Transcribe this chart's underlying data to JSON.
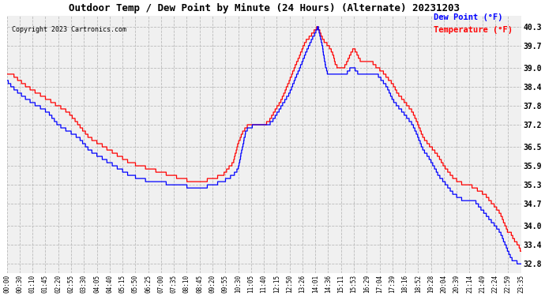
{
  "title": "Outdoor Temp / Dew Point by Minute (24 Hours) (Alternate) 20231203",
  "copyright": "Copyright 2023 Cartronics.com",
  "legend_dew": "Dew Point (°F)",
  "legend_temp": "Temperature (°F)",
  "temp_color": "red",
  "dew_color": "blue",
  "plot_bg": "#f0f0f0",
  "fig_bg": "white",
  "grid_color": "#bbbbbb",
  "yticks": [
    32.8,
    33.4,
    34.0,
    34.7,
    35.3,
    35.9,
    36.5,
    37.2,
    37.8,
    38.4,
    39.0,
    39.7,
    40.3
  ],
  "ytick_labels": [
    "32.8",
    "33.4",
    "34.0",
    "34.7",
    "35.3",
    "35.9",
    "36.5",
    "37.2",
    "37.8",
    "38.4",
    "39.0",
    "39.7",
    "40.3"
  ],
  "ylim": [
    32.5,
    40.65
  ],
  "xtick_labels": [
    "00:00",
    "00:30",
    "01:10",
    "01:45",
    "02:20",
    "02:55",
    "03:30",
    "04:05",
    "04:40",
    "05:15",
    "05:50",
    "06:25",
    "07:00",
    "07:35",
    "08:10",
    "08:45",
    "09:20",
    "09:55",
    "10:30",
    "11:05",
    "11:40",
    "12:15",
    "12:50",
    "13:26",
    "14:01",
    "14:36",
    "15:11",
    "15:53",
    "16:29",
    "17:04",
    "17:39",
    "18:16",
    "18:52",
    "19:28",
    "20:04",
    "20:39",
    "21:14",
    "21:49",
    "22:24",
    "22:59",
    "23:35"
  ],
  "figsize": [
    6.9,
    3.75
  ],
  "dpi": 100,
  "temp_keypoints": [
    [
      0.0,
      38.8
    ],
    [
      0.01,
      38.8
    ],
    [
      0.025,
      38.6
    ],
    [
      0.04,
      38.4
    ],
    [
      0.06,
      38.2
    ],
    [
      0.08,
      38.0
    ],
    [
      0.1,
      37.8
    ],
    [
      0.12,
      37.6
    ],
    [
      0.14,
      37.2
    ],
    [
      0.16,
      36.8
    ],
    [
      0.18,
      36.6
    ],
    [
      0.2,
      36.4
    ],
    [
      0.22,
      36.2
    ],
    [
      0.24,
      36.0
    ],
    [
      0.26,
      35.9
    ],
    [
      0.28,
      35.8
    ],
    [
      0.3,
      35.7
    ],
    [
      0.32,
      35.6
    ],
    [
      0.34,
      35.5
    ],
    [
      0.36,
      35.4
    ],
    [
      0.38,
      35.4
    ],
    [
      0.4,
      35.5
    ],
    [
      0.42,
      35.6
    ],
    [
      0.43,
      35.8
    ],
    [
      0.44,
      36.0
    ],
    [
      0.45,
      36.6
    ],
    [
      0.46,
      37.0
    ],
    [
      0.465,
      37.1
    ],
    [
      0.47,
      37.2
    ],
    [
      0.475,
      37.2
    ],
    [
      0.48,
      37.2
    ],
    [
      0.49,
      37.2
    ],
    [
      0.5,
      37.2
    ],
    [
      0.51,
      37.3
    ],
    [
      0.52,
      37.6
    ],
    [
      0.535,
      38.0
    ],
    [
      0.55,
      38.6
    ],
    [
      0.56,
      39.0
    ],
    [
      0.57,
      39.4
    ],
    [
      0.58,
      39.8
    ],
    [
      0.59,
      40.0
    ],
    [
      0.6,
      40.2
    ],
    [
      0.605,
      40.3
    ],
    [
      0.61,
      40.1
    ],
    [
      0.615,
      39.9
    ],
    [
      0.62,
      39.8
    ],
    [
      0.625,
      39.7
    ],
    [
      0.63,
      39.6
    ],
    [
      0.635,
      39.4
    ],
    [
      0.64,
      39.1
    ],
    [
      0.645,
      39.0
    ],
    [
      0.65,
      39.0
    ],
    [
      0.655,
      39.0
    ],
    [
      0.66,
      39.1
    ],
    [
      0.665,
      39.3
    ],
    [
      0.67,
      39.5
    ],
    [
      0.675,
      39.6
    ],
    [
      0.68,
      39.5
    ],
    [
      0.685,
      39.3
    ],
    [
      0.69,
      39.2
    ],
    [
      0.7,
      39.2
    ],
    [
      0.71,
      39.2
    ],
    [
      0.72,
      39.0
    ],
    [
      0.73,
      38.9
    ],
    [
      0.74,
      38.7
    ],
    [
      0.75,
      38.5
    ],
    [
      0.76,
      38.2
    ],
    [
      0.77,
      38.0
    ],
    [
      0.78,
      37.8
    ],
    [
      0.79,
      37.6
    ],
    [
      0.8,
      37.2
    ],
    [
      0.81,
      36.8
    ],
    [
      0.82,
      36.6
    ],
    [
      0.83,
      36.4
    ],
    [
      0.84,
      36.2
    ],
    [
      0.85,
      35.9
    ],
    [
      0.86,
      35.7
    ],
    [
      0.87,
      35.5
    ],
    [
      0.88,
      35.4
    ],
    [
      0.89,
      35.3
    ],
    [
      0.9,
      35.3
    ],
    [
      0.91,
      35.2
    ],
    [
      0.92,
      35.1
    ],
    [
      0.93,
      35.0
    ],
    [
      0.94,
      34.8
    ],
    [
      0.95,
      34.6
    ],
    [
      0.96,
      34.4
    ],
    [
      0.965,
      34.2
    ],
    [
      0.97,
      34.0
    ],
    [
      0.975,
      33.8
    ],
    [
      0.98,
      33.8
    ],
    [
      0.985,
      33.6
    ],
    [
      0.99,
      33.5
    ],
    [
      0.995,
      33.4
    ],
    [
      1.0,
      33.2
    ]
  ],
  "dew_keypoints": [
    [
      0.0,
      38.6
    ],
    [
      0.01,
      38.4
    ],
    [
      0.025,
      38.2
    ],
    [
      0.04,
      38.0
    ],
    [
      0.06,
      37.8
    ],
    [
      0.08,
      37.6
    ],
    [
      0.1,
      37.2
    ],
    [
      0.12,
      37.0
    ],
    [
      0.14,
      36.8
    ],
    [
      0.16,
      36.4
    ],
    [
      0.18,
      36.2
    ],
    [
      0.2,
      36.0
    ],
    [
      0.22,
      35.8
    ],
    [
      0.24,
      35.6
    ],
    [
      0.26,
      35.5
    ],
    [
      0.28,
      35.4
    ],
    [
      0.3,
      35.4
    ],
    [
      0.32,
      35.3
    ],
    [
      0.34,
      35.3
    ],
    [
      0.36,
      35.2
    ],
    [
      0.38,
      35.2
    ],
    [
      0.4,
      35.3
    ],
    [
      0.42,
      35.4
    ],
    [
      0.43,
      35.5
    ],
    [
      0.44,
      35.6
    ],
    [
      0.45,
      35.8
    ],
    [
      0.46,
      36.6
    ],
    [
      0.465,
      37.0
    ],
    [
      0.47,
      37.1
    ],
    [
      0.475,
      37.1
    ],
    [
      0.48,
      37.2
    ],
    [
      0.49,
      37.2
    ],
    [
      0.5,
      37.2
    ],
    [
      0.51,
      37.2
    ],
    [
      0.52,
      37.4
    ],
    [
      0.535,
      37.8
    ],
    [
      0.55,
      38.2
    ],
    [
      0.56,
      38.6
    ],
    [
      0.57,
      39.0
    ],
    [
      0.58,
      39.4
    ],
    [
      0.59,
      39.8
    ],
    [
      0.6,
      40.1
    ],
    [
      0.605,
      40.3
    ],
    [
      0.61,
      40.0
    ],
    [
      0.615,
      39.6
    ],
    [
      0.618,
      39.2
    ],
    [
      0.622,
      38.9
    ],
    [
      0.625,
      38.8
    ],
    [
      0.63,
      38.8
    ],
    [
      0.635,
      38.8
    ],
    [
      0.64,
      38.8
    ],
    [
      0.645,
      38.8
    ],
    [
      0.65,
      38.8
    ],
    [
      0.655,
      38.8
    ],
    [
      0.66,
      38.8
    ],
    [
      0.665,
      38.9
    ],
    [
      0.67,
      39.0
    ],
    [
      0.675,
      39.0
    ],
    [
      0.68,
      38.9
    ],
    [
      0.685,
      38.8
    ],
    [
      0.69,
      38.8
    ],
    [
      0.7,
      38.8
    ],
    [
      0.71,
      38.8
    ],
    [
      0.72,
      38.8
    ],
    [
      0.73,
      38.6
    ],
    [
      0.74,
      38.4
    ],
    [
      0.75,
      38.0
    ],
    [
      0.76,
      37.8
    ],
    [
      0.77,
      37.6
    ],
    [
      0.78,
      37.4
    ],
    [
      0.79,
      37.2
    ],
    [
      0.8,
      36.8
    ],
    [
      0.81,
      36.4
    ],
    [
      0.82,
      36.2
    ],
    [
      0.83,
      35.9
    ],
    [
      0.84,
      35.6
    ],
    [
      0.85,
      35.4
    ],
    [
      0.86,
      35.2
    ],
    [
      0.87,
      35.0
    ],
    [
      0.88,
      34.9
    ],
    [
      0.89,
      34.8
    ],
    [
      0.9,
      34.8
    ],
    [
      0.91,
      34.8
    ],
    [
      0.92,
      34.6
    ],
    [
      0.93,
      34.4
    ],
    [
      0.94,
      34.2
    ],
    [
      0.95,
      34.0
    ],
    [
      0.96,
      33.8
    ],
    [
      0.965,
      33.6
    ],
    [
      0.97,
      33.4
    ],
    [
      0.975,
      33.2
    ],
    [
      0.98,
      33.0
    ],
    [
      0.985,
      32.9
    ],
    [
      0.99,
      32.9
    ],
    [
      0.995,
      32.8
    ],
    [
      1.0,
      32.8
    ]
  ]
}
